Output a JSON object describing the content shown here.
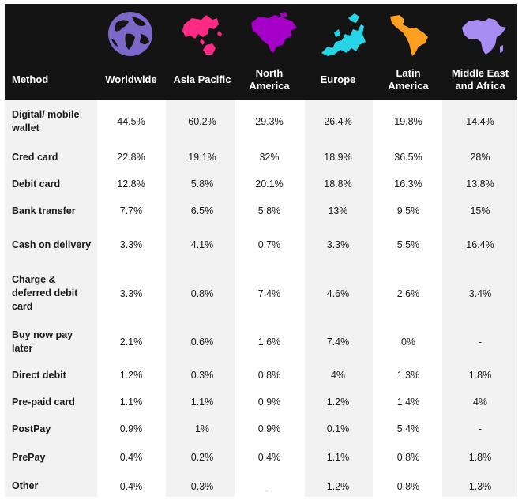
{
  "colors": {
    "header_bg": "#141414",
    "stripe_bg": "#f2f2f2",
    "worldwide": "#7b68c8",
    "asia_pacific": "#ff2a84",
    "north_america": "#a400c8",
    "europe": "#27d3e6",
    "latin_america": "#ff9f22",
    "middle_east_africa": "#a68cf0"
  },
  "icons": [
    "globe-icon",
    "asia-pacific-map-icon",
    "north-america-map-icon",
    "europe-map-icon",
    "latin-america-map-icon",
    "africa-map-icon"
  ],
  "columns": [
    "Method",
    "Worldwide",
    "Asia Pacific",
    "North America",
    "Europe",
    "Latin America",
    "Middle East and Africa"
  ],
  "rows": [
    {
      "method": "Digital/ mobile wallet",
      "values": [
        "44.5%",
        "60.2%",
        "29.3%",
        "26.4%",
        "19.8%",
        "14.4%"
      ]
    },
    {
      "method": "Cred card",
      "values": [
        "22.8%",
        "19.1%",
        "32%",
        "18.9%",
        "36.5%",
        "28%"
      ]
    },
    {
      "method": "Debit card",
      "values": [
        "12.8%",
        "5.8%",
        "20.1%",
        "18.8%",
        "16.3%",
        "13.8%"
      ]
    },
    {
      "method": "Bank transfer",
      "values": [
        "7.7%",
        "6.5%",
        "5.8%",
        "13%",
        "9.5%",
        "15%"
      ]
    },
    {
      "method": "Cash on delivery",
      "values": [
        "3.3%",
        "4.1%",
        "0.7%",
        "3.3%",
        "5.5%",
        "16.4%"
      ]
    },
    {
      "method": "Charge & deferred debit card",
      "values": [
        "3.3%",
        "0.8%",
        "7.4%",
        "4.6%",
        "2.6%",
        "3.4%"
      ]
    },
    {
      "method": "Buy now pay later",
      "values": [
        "2.1%",
        "0.6%",
        "1.6%",
        "7.4%",
        "0%",
        "-"
      ]
    },
    {
      "method": "Direct debit",
      "values": [
        "1.2%",
        "0.3%",
        "0.8%",
        "4%",
        "1.3%",
        "1.8%"
      ]
    },
    {
      "method": "Pre-paid card",
      "values": [
        "1.1%",
        "1.1%",
        "0.9%",
        "1.2%",
        "1.4%",
        "4%"
      ]
    },
    {
      "method": "PostPay",
      "values": [
        "0.9%",
        "1%",
        "0.9%",
        "0.1%",
        "5.4%",
        "-"
      ]
    },
    {
      "method": "PrePay",
      "values": [
        "0.4%",
        "0.2%",
        "0.4%",
        "1.1%",
        "0.8%",
        "1.8%"
      ]
    },
    {
      "method": "Other",
      "values": [
        "0.4%",
        "0.3%",
        "-",
        "1.2%",
        "0.8%",
        "1.3%"
      ]
    }
  ]
}
